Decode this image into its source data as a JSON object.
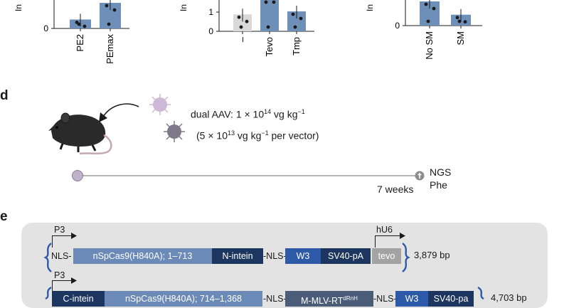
{
  "colors": {
    "bar_blue": "#6e8fb8",
    "bar_grey": "#d9d9d9",
    "seg_light_blue": "#6c8ab8",
    "seg_dark_navy": "#1d3660",
    "seg_royal": "#2d5aa8",
    "seg_grey": "#a3a3a3",
    "seg_slate": "#4b5c78",
    "construct_bg": "#e3e3e3",
    "aav_light": "#cdb8d6",
    "aav_dark": "#7e7888",
    "timeline_dot": "#c1b2cc"
  },
  "chart_data": [
    {
      "type": "bar",
      "categories": [
        "PE2",
        "PEmax"
      ],
      "values": [
        0.35,
        1.0
      ],
      "ytick_labels": [
        "0"
      ],
      "ylabel": "In"
    },
    {
      "type": "bar",
      "categories": [
        "–",
        "Tevo",
        "Tmp"
      ],
      "values": [
        0.85,
        2.0,
        1.0
      ],
      "ytick_labels": [
        "0",
        "1"
      ],
      "ylabel": "In"
    },
    {
      "type": "bar",
      "categories": [
        "No SM",
        "SM"
      ],
      "values": [
        1.0,
        0.45
      ],
      "ytick_labels": [
        "0"
      ],
      "ylabel": "In"
    }
  ],
  "panel_d": {
    "label": "d",
    "dose_line": {
      "pre": "dual AAV: 1 × 10",
      "exp": "14",
      "mid": " vg kg",
      "exp2": "−1"
    },
    "per_vector_line": {
      "pre": "(5 × 10",
      "exp": "13",
      "mid": " vg kg",
      "exp2": "−1",
      "post": " per vector)"
    },
    "timeline_end_label_1": "NGS",
    "timeline_end_label_2": "Phe",
    "timeline_duration": "7 weeks",
    "icons": [
      "mouse-icon",
      "arrow-icon",
      "aav-particle-icon",
      "cross-icon"
    ]
  },
  "panel_e": {
    "label": "e",
    "row1": {
      "promoter": "P3",
      "promoter2": "hU6",
      "segments": [
        "NLS-",
        "nSpCas9(H840A); 1–713",
        "N-intein",
        "-NLS-",
        "W3",
        "SV40-pA",
        "tevo"
      ],
      "size": "3,879 bp"
    },
    "row2": {
      "promoter": "P3",
      "segments": [
        "C-intein",
        "nSpCas9(H840A); 714–1,368",
        "-NLS-",
        "M-MLV-RT",
        "-NLS-",
        "W3",
        "SV40-pa"
      ],
      "rt_superscript": "dRnH",
      "size": "4,703 bp"
    }
  }
}
